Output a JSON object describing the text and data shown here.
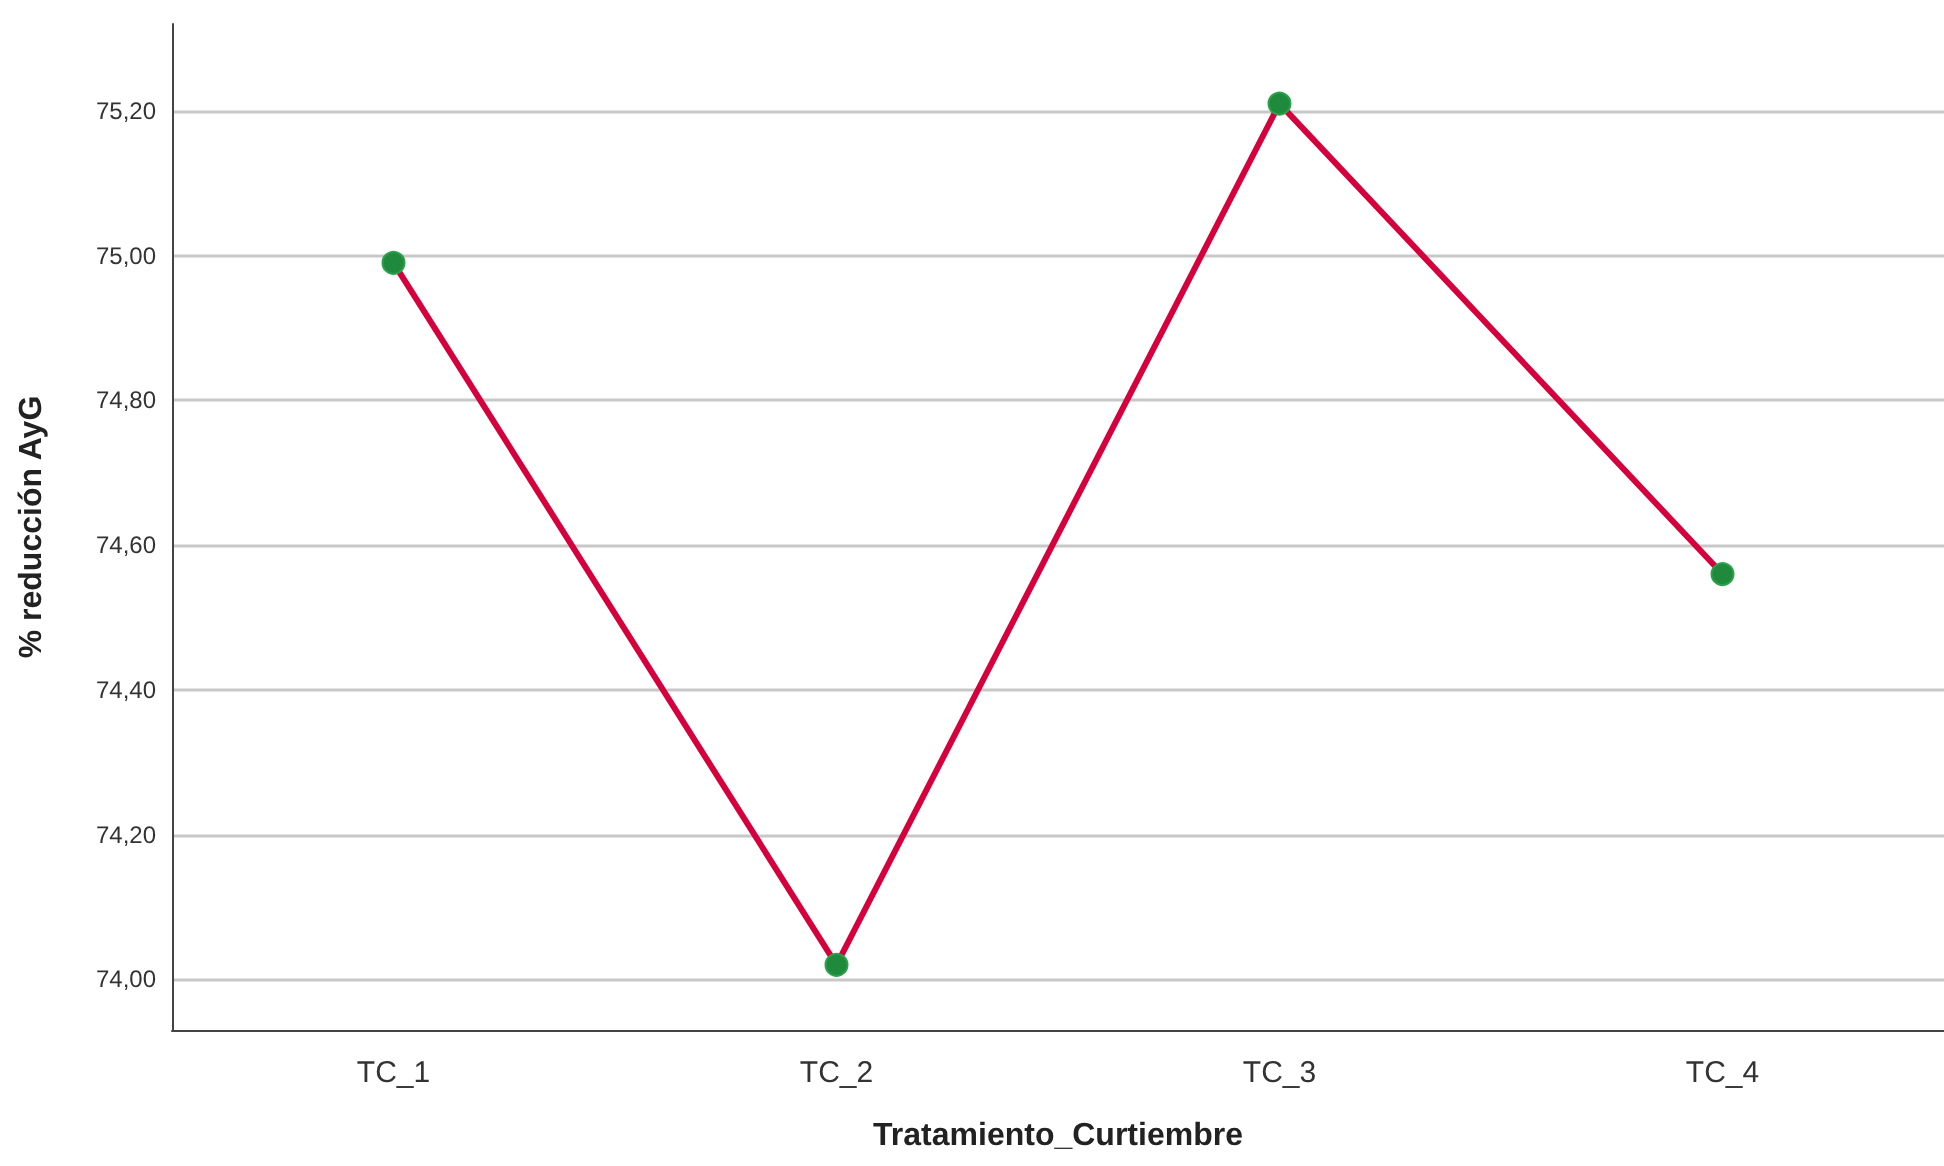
{
  "chart_data": {
    "type": "line",
    "xlabel": "Tratamiento_Curtiembre",
    "ylabel": "% reducción AyG",
    "categories": [
      "TC_1",
      "TC_2",
      "TC_3",
      "TC_4"
    ],
    "series": [
      {
        "color": "#d6003c",
        "values": [
          74.99,
          74.02,
          75.21,
          74.56
        ]
      }
    ],
    "ylim": [
      73.93,
      75.32
    ],
    "yticks": [
      {
        "value": 74.0,
        "label": "74,00"
      },
      {
        "value": 74.2,
        "label": "74,20"
      },
      {
        "value": 74.4,
        "label": "74,40"
      },
      {
        "value": 74.6,
        "label": "74,60"
      },
      {
        "value": 74.8,
        "label": "74,80"
      },
      {
        "value": 75.0,
        "label": "75,00"
      },
      {
        "value": 75.2,
        "label": "75,20"
      }
    ],
    "grid": "y",
    "marker": "circle",
    "line_style": "solid"
  }
}
